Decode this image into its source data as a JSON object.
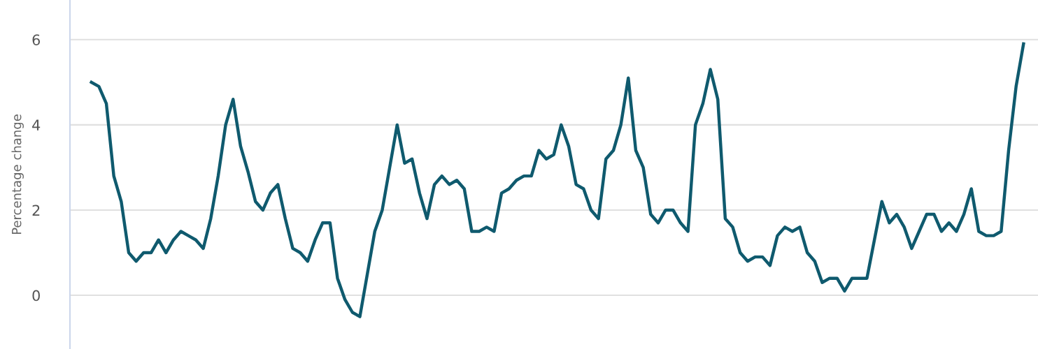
{
  "chart_data": {
    "type": "line",
    "ylabel": "Percentage change",
    "categories": [
      null,
      null,
      null,
      null,
      null,
      null,
      null,
      null,
      null,
      null,
      null,
      null,
      null,
      null,
      null,
      null,
      null,
      null,
      null,
      null,
      null,
      null,
      null,
      null,
      null,
      null,
      null,
      null,
      null,
      null,
      null,
      null,
      null,
      null,
      null,
      null,
      null,
      null,
      null,
      null,
      null,
      null,
      null,
      null,
      null,
      null,
      null,
      null,
      null,
      null,
      null,
      null,
      null,
      null,
      null,
      null,
      null,
      null,
      null,
      null,
      null,
      null,
      null,
      null,
      null,
      null,
      null,
      null,
      null,
      null,
      null,
      null,
      null,
      null,
      null,
      null,
      null,
      null,
      null,
      null,
      null,
      null,
      null,
      null,
      null,
      null,
      null,
      null,
      null,
      null,
      null,
      null,
      null,
      null,
      null,
      null,
      null,
      null,
      null,
      null,
      null,
      null,
      null,
      null,
      null,
      null,
      null,
      null,
      null,
      null,
      null,
      null,
      null,
      null,
      null,
      null,
      null,
      null,
      null,
      null,
      null,
      null,
      null,
      null,
      null,
      null,
      null,
      null
    ],
    "series": [
      {
        "color": "#0f5a6e",
        "values": [
          null,
          5.0,
          4.9,
          4.5,
          2.8,
          2.2,
          1.0,
          0.8,
          1.0,
          1.0,
          1.3,
          1.0,
          1.3,
          1.5,
          1.4,
          1.3,
          1.1,
          1.8,
          2.8,
          4.0,
          4.6,
          3.5,
          2.9,
          2.2,
          2.0,
          2.4,
          2.6,
          1.8,
          1.1,
          1.0,
          0.8,
          1.3,
          1.7,
          1.7,
          0.4,
          -0.1,
          -0.4,
          -0.5,
          0.5,
          1.5,
          2.0,
          3.0,
          4.0,
          3.1,
          3.2,
          2.4,
          1.8,
          2.6,
          2.8,
          2.6,
          2.7,
          2.5,
          1.5,
          1.5,
          1.6,
          1.5,
          2.4,
          2.5,
          2.7,
          2.8,
          2.8,
          3.4,
          3.2,
          3.3,
          4.0,
          3.5,
          2.6,
          2.5,
          2.0,
          1.8,
          3.2,
          3.4,
          4.0,
          5.1,
          3.4,
          3.0,
          1.9,
          1.7,
          2.0,
          2.0,
          1.7,
          1.5,
          4.0,
          4.5,
          5.3,
          4.6,
          1.8,
          1.6,
          1.0,
          0.8,
          0.9,
          0.9,
          0.7,
          1.4,
          1.6,
          1.5,
          1.6,
          1.0,
          0.8,
          0.3,
          0.4,
          0.4,
          0.1,
          0.4,
          0.4,
          0.4,
          1.3,
          2.2,
          1.7,
          1.9,
          1.6,
          1.1,
          1.5,
          1.9,
          1.9,
          1.5,
          1.7,
          1.5,
          1.9,
          2.5,
          1.5,
          1.4,
          1.4,
          1.5,
          3.4,
          4.9,
          5.9,
          null
        ]
      }
    ],
    "ylim": [
      -1.26,
      6.93
    ],
    "yticks": [
      0,
      2,
      4,
      6
    ],
    "grid": "y",
    "legend": false,
    "marker": "none",
    "line_style": "solid",
    "tick_labels": "y"
  }
}
